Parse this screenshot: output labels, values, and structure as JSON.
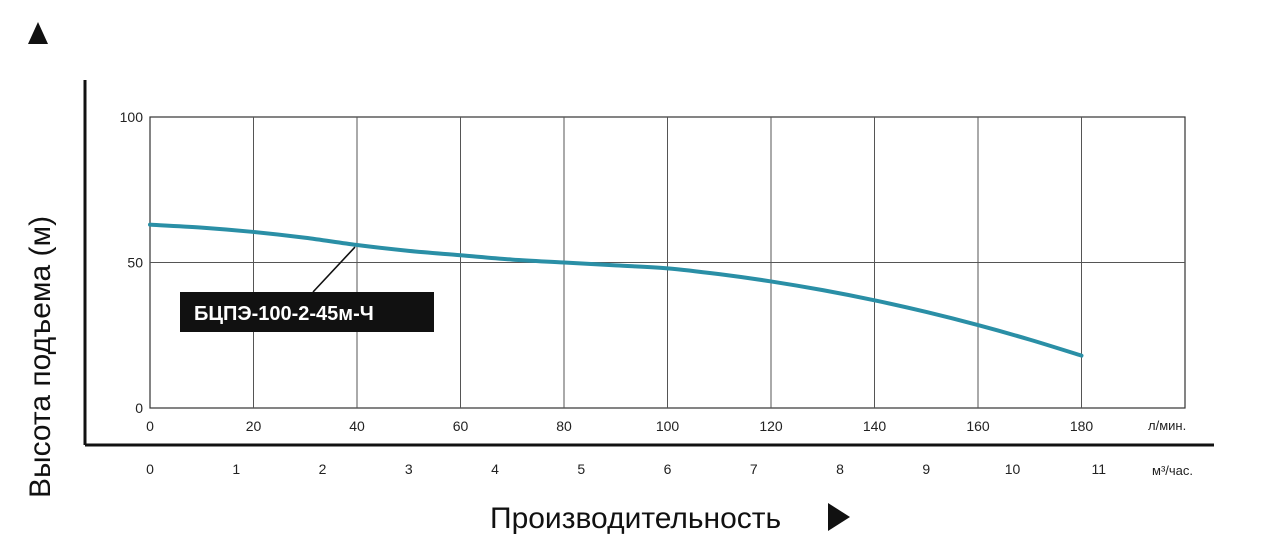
{
  "chart_data": {
    "type": "line",
    "ylabel": "Высота подъема (м)",
    "xlabel": "Производительность",
    "x_primary_unit": "л/мин.",
    "x_secondary_unit": "м³/час.",
    "xlim": [
      0,
      200
    ],
    "ylim": [
      0,
      100
    ],
    "x_ticks": [
      0,
      20,
      40,
      60,
      80,
      100,
      120,
      140,
      160,
      180
    ],
    "x_tick_labels": [
      "0",
      "20",
      "40",
      "60",
      "80",
      "100",
      "120",
      "140",
      "160",
      "180"
    ],
    "y_ticks": [
      0,
      50,
      100
    ],
    "y_tick_labels": [
      "0",
      "50",
      "100"
    ],
    "secondary_ticks": [
      0,
      1,
      2,
      3,
      4,
      5,
      6,
      7,
      8,
      9,
      10,
      11
    ],
    "secondary_tick_labels": [
      "0",
      "1",
      "2",
      "3",
      "4",
      "5",
      "6",
      "7",
      "8",
      "9",
      "10",
      "11"
    ],
    "grid": true,
    "series": [
      {
        "name": "БЦПЭ-100-2-45м-Ч",
        "color": "#2a8fa6",
        "x": [
          0,
          10,
          20,
          30,
          40,
          50,
          60,
          70,
          80,
          90,
          100,
          110,
          120,
          130,
          140,
          150,
          160,
          170,
          180
        ],
        "y": [
          63,
          62,
          60.5,
          58.5,
          56,
          54,
          52.5,
          51,
          50,
          49,
          48,
          46,
          43.5,
          40.5,
          37,
          33,
          28.5,
          23.5,
          18
        ]
      }
    ],
    "annotation": {
      "text": "БЦПЭ-100-2-45м-Ч",
      "points_to_x": 40
    }
  }
}
